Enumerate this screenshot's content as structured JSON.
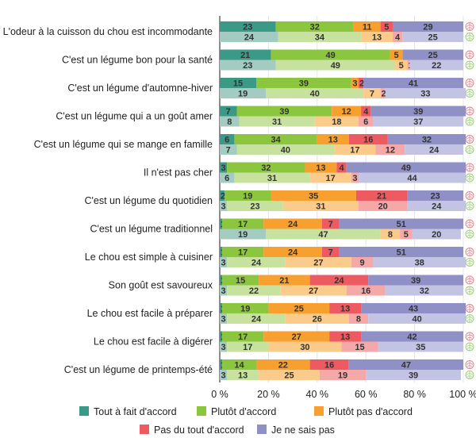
{
  "chart_data": {
    "type": "bar",
    "orientation": "horizontal",
    "stacked": true,
    "percent_stacked": true,
    "xlim": [
      0,
      100
    ],
    "xticks": [
      "0 %",
      "20 %",
      "40 %",
      "60 %",
      "80 %",
      "100 %"
    ],
    "grid": true,
    "legend_placement": "bottom",
    "legend": [
      "Tout à fait d'accord",
      "Plutôt d'accord",
      "Plutôt pas d'accord",
      "Pas du tout d'accord",
      "Je ne sais pas"
    ],
    "colors_dark": [
      "#3a9a86",
      "#8cc63f",
      "#f7a030",
      "#ee5a62",
      "#8e90c6"
    ],
    "colors_light": [
      "#a3cbc1",
      "#c7e29e",
      "#fbcb8c",
      "#f5a8a8",
      "#c3c4e3"
    ],
    "series_icons": [
      "red-cabbage-icon",
      "green-cabbage-icon"
    ],
    "categories": [
      "L'odeur à la cuisson du chou est incommodante",
      "C'est un légume bon pour la santé",
      "C'est un légume d'automne-hiver",
      "C'est un légume qui a un goût amer",
      "C'est un légume qui se mange en famille",
      "Il n'est pas cher",
      "C'est un légume du quotidien",
      "C'est un légume traditionnel",
      "Le chou est simple à cuisiner",
      "Son goût est savoureux",
      "Le chou est facile à préparer",
      "Le chou est facile à digérer",
      "C'est un légume de printemps-été"
    ],
    "series": [
      {
        "values": [
          [
            23,
            32,
            11,
            5,
            29
          ],
          [
            21,
            49,
            5,
            0,
            25
          ],
          [
            15,
            39,
            3,
            2,
            41
          ],
          [
            7,
            39,
            12,
            4,
            39
          ],
          [
            6,
            34,
            13,
            16,
            32
          ],
          [
            3,
            32,
            13,
            4,
            49
          ],
          [
            2,
            19,
            35,
            21,
            23
          ],
          [
            1,
            17,
            24,
            7,
            51
          ],
          [
            1,
            17,
            24,
            7,
            51
          ],
          [
            1,
            15,
            21,
            24,
            39
          ],
          [
            1,
            19,
            25,
            13,
            43
          ],
          [
            1,
            17,
            27,
            13,
            42
          ],
          [
            1,
            14,
            22,
            16,
            47
          ]
        ]
      },
      {
        "values": [
          [
            24,
            34,
            13,
            4,
            25
          ],
          [
            23,
            49,
            5,
            1,
            22
          ],
          [
            19,
            40,
            7,
            2,
            33
          ],
          [
            8,
            31,
            18,
            6,
            37
          ],
          [
            7,
            40,
            17,
            12,
            24
          ],
          [
            6,
            31,
            17,
            3,
            44
          ],
          [
            3,
            23,
            31,
            20,
            24
          ],
          [
            19,
            47,
            8,
            5,
            20
          ],
          [
            3,
            24,
            27,
            9,
            38
          ],
          [
            3,
            22,
            27,
            16,
            32
          ],
          [
            3,
            24,
            26,
            8,
            40
          ],
          [
            3,
            17,
            30,
            15,
            35
          ],
          [
            3,
            13,
            25,
            19,
            39
          ]
        ]
      }
    ]
  }
}
